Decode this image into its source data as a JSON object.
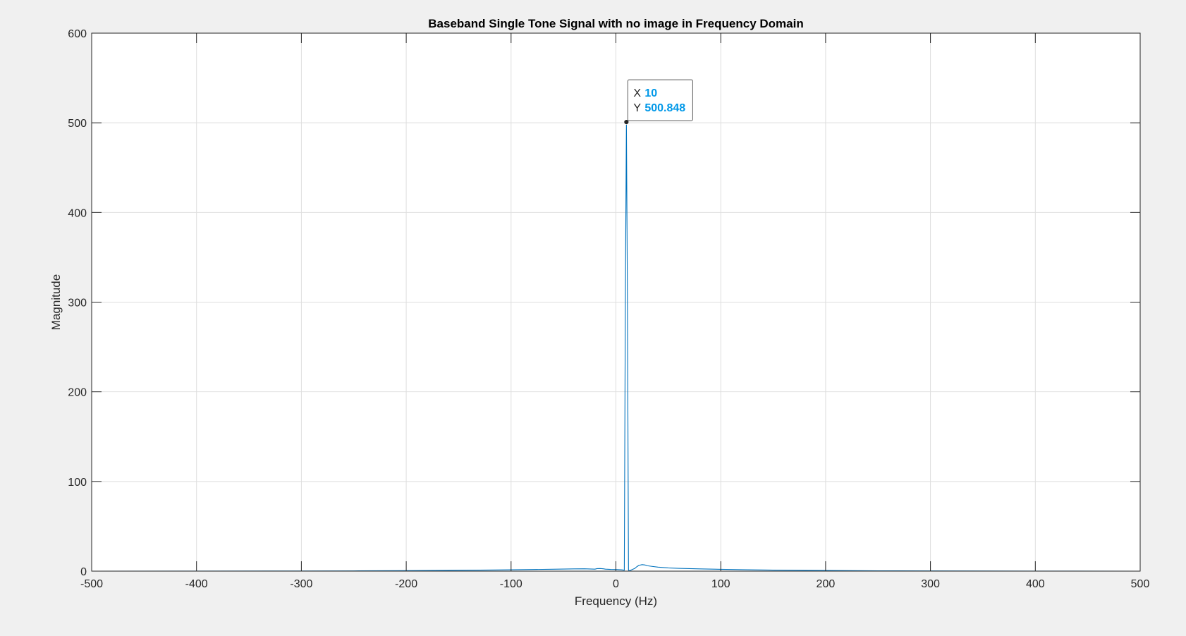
{
  "chart_data": {
    "type": "line",
    "title": "Baseband Single Tone Signal with no image in Frequency Domain",
    "xlabel": "Frequency (Hz)",
    "ylabel": "Magnitude",
    "xlim": [
      -500,
      500
    ],
    "ylim": [
      0,
      600
    ],
    "xticks": [
      -500,
      -400,
      -300,
      -200,
      -100,
      0,
      100,
      200,
      300,
      400,
      500
    ],
    "yticks": [
      0,
      100,
      200,
      300,
      400,
      500,
      600
    ],
    "grid": true,
    "series": [
      {
        "color": "#0072bd",
        "x": [
          -500,
          -400,
          -300,
          -250,
          -200,
          -150,
          -120,
          -100,
          -80,
          -60,
          -50,
          -40,
          -30,
          -25,
          -20,
          -18,
          -15,
          -12,
          -10,
          -5,
          0,
          3,
          5,
          7,
          8,
          9,
          10,
          11,
          12,
          13,
          15,
          18,
          20,
          22,
          25,
          28,
          30,
          35,
          40,
          50,
          60,
          80,
          100,
          120,
          150,
          200,
          250,
          300,
          400,
          500
        ],
        "y": [
          0,
          0.05,
          0.15,
          0.3,
          0.5,
          0.9,
          1.2,
          1.5,
          1.8,
          2.1,
          2.3,
          2.5,
          2.6,
          2.4,
          2.2,
          2.8,
          2.9,
          2.6,
          2.2,
          1.9,
          1.8,
          1.6,
          1.5,
          1.2,
          1,
          300,
          500.848,
          300,
          1,
          0.5,
          1.5,
          3,
          5,
          6.5,
          7.2,
          6.8,
          6,
          5.2,
          4.5,
          3.6,
          3.1,
          2.5,
          2,
          1.6,
          1.1,
          0.7,
          0.4,
          0.25,
          0.1,
          0
        ]
      }
    ],
    "datatip": {
      "x_label": "X",
      "x_value": "10",
      "y_label": "Y",
      "y_value": "500.848",
      "anchor_x": 10,
      "anchor_y": 500.848
    }
  }
}
